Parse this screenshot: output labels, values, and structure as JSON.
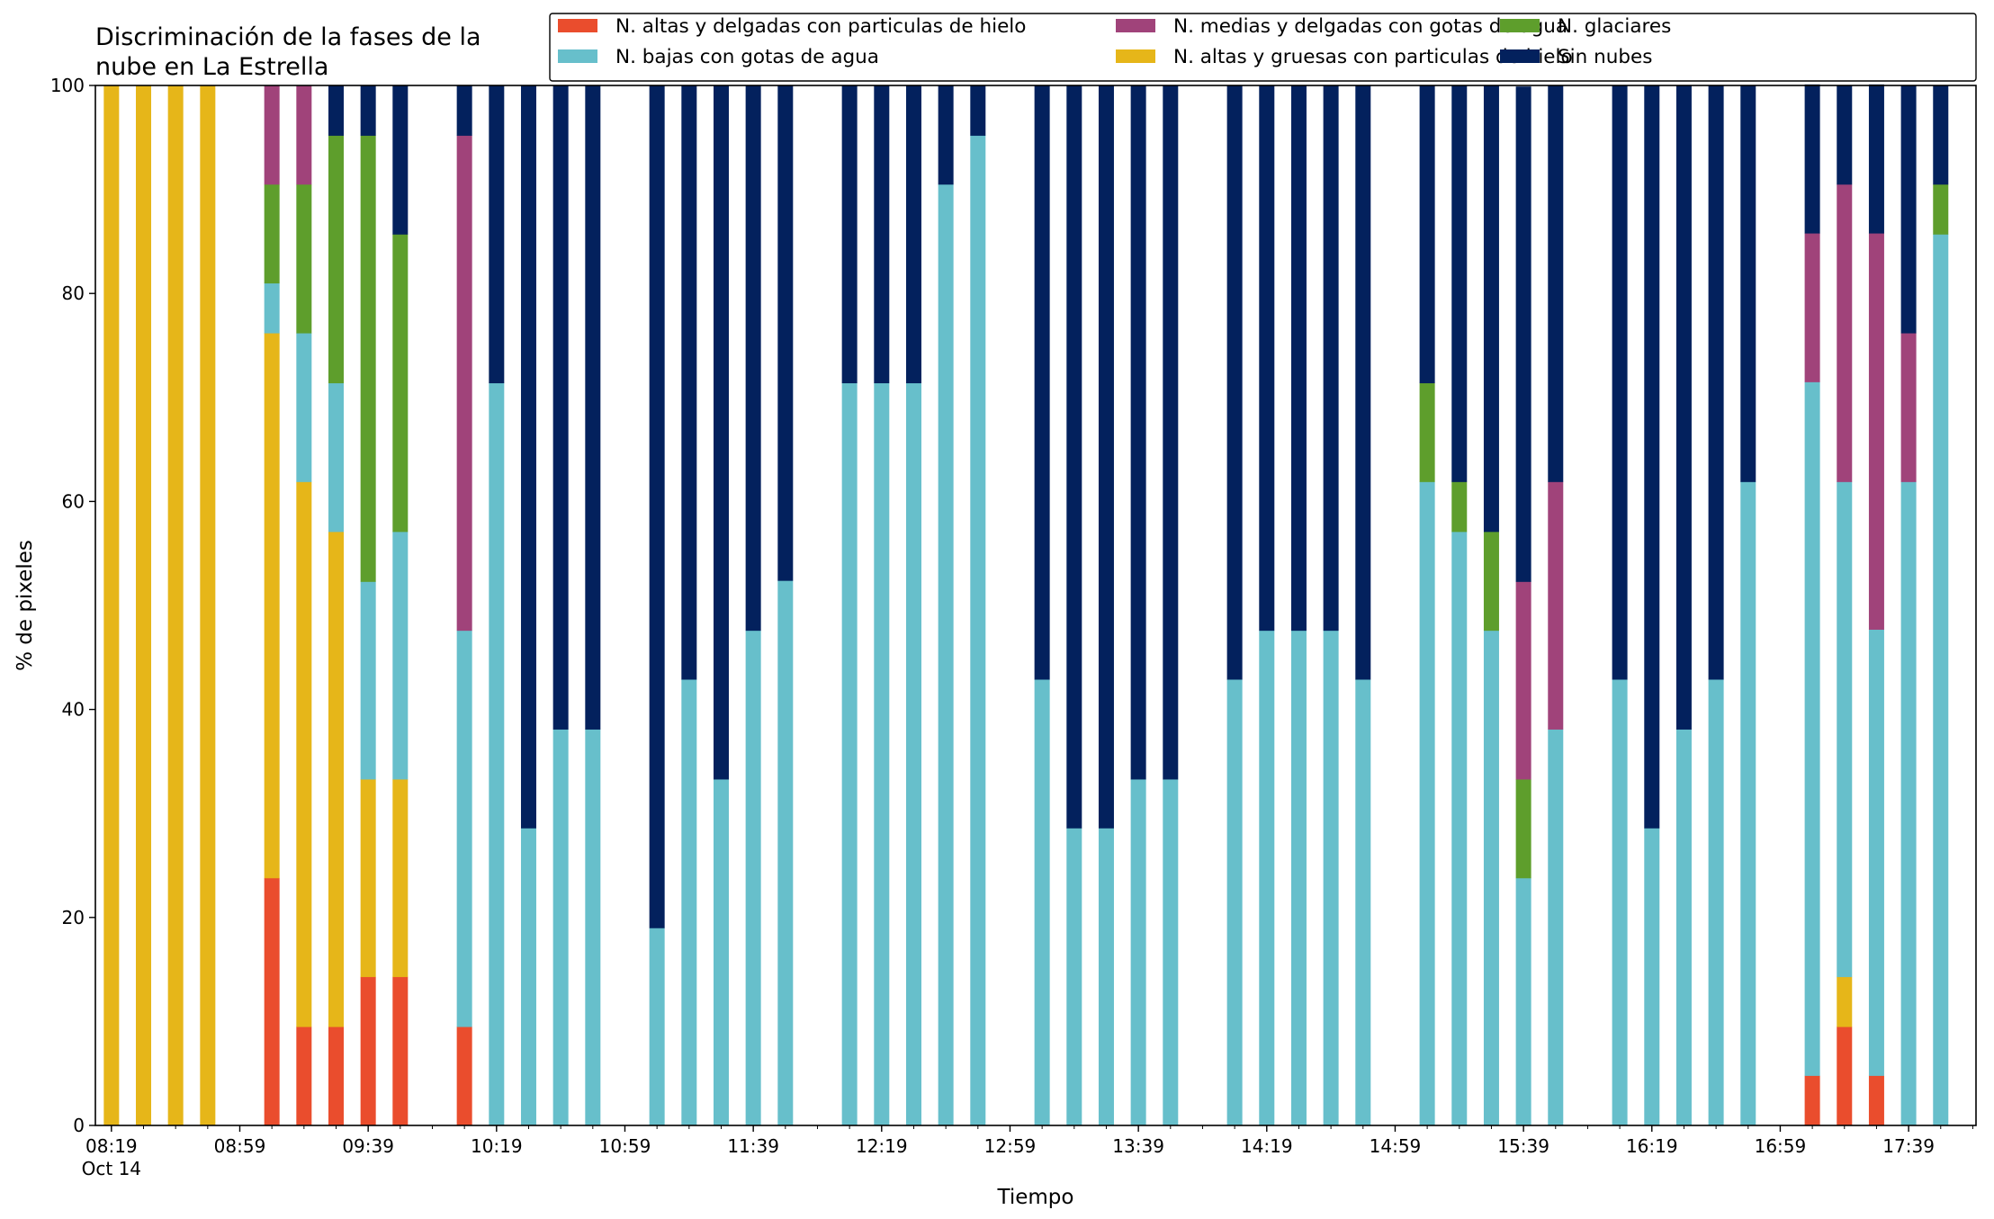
{
  "chart_data": {
    "type": "bar",
    "stacked": true,
    "title_lines": [
      "Discriminación de la fases de la",
      "nube en La Estrella"
    ],
    "xlabel": "Tiempo",
    "ylabel": "% de pixeles",
    "ylim": [
      0,
      100
    ],
    "yticks": [
      0,
      20,
      40,
      60,
      80,
      100
    ],
    "grid": false,
    "legend_position": "top-right",
    "x_time_range": [
      "08:14",
      "18:00"
    ],
    "x_ticks": [
      {
        "time": "08:19",
        "label": "08:19",
        "sublabel": "Oct 14"
      },
      {
        "time": "08:59",
        "label": "08:59"
      },
      {
        "time": "09:39",
        "label": "09:39"
      },
      {
        "time": "10:19",
        "label": "10:19"
      },
      {
        "time": "10:59",
        "label": "10:59"
      },
      {
        "time": "11:39",
        "label": "11:39"
      },
      {
        "time": "12:19",
        "label": "12:19"
      },
      {
        "time": "12:59",
        "label": "12:59"
      },
      {
        "time": "13:39",
        "label": "13:39"
      },
      {
        "time": "14:19",
        "label": "14:19"
      },
      {
        "time": "14:59",
        "label": "14:59"
      },
      {
        "time": "15:39",
        "label": "15:39"
      },
      {
        "time": "16:19",
        "label": "16:19"
      },
      {
        "time": "16:59",
        "label": "16:59"
      },
      {
        "time": "17:39",
        "label": "17:39"
      }
    ],
    "series": [
      {
        "name": "N. altas y delgadas con particulas de hielo",
        "color": "#ea4d2d"
      },
      {
        "name": "N. altas y gruesas con particulas de hielo",
        "color": "#e6b619"
      },
      {
        "name": "N. bajas con gotas de agua",
        "color": "#67bfcb"
      },
      {
        "name": "N. glaciares",
        "color": "#5e9e2c"
      },
      {
        "name": "N. medias y delgadas con gotas de agua",
        "color": "#a0437a"
      },
      {
        "name": "Sin nubes",
        "color": "#03215d"
      }
    ],
    "legend_order": [
      0,
      2,
      4,
      1,
      3,
      5
    ],
    "bars": [
      {
        "time": "08:19",
        "values": [
          0,
          100,
          0,
          0,
          0,
          0
        ]
      },
      {
        "time": "08:29",
        "values": [
          0,
          100,
          0,
          0,
          0,
          0
        ]
      },
      {
        "time": "08:39",
        "values": [
          0,
          100,
          0,
          0,
          0,
          0
        ]
      },
      {
        "time": "08:49",
        "values": [
          0,
          100,
          0,
          0,
          0,
          0
        ]
      },
      {
        "time": "09:09",
        "values": [
          23.8,
          52.4,
          4.8,
          9.5,
          9.5,
          0
        ]
      },
      {
        "time": "09:19",
        "values": [
          9.5,
          52.4,
          14.3,
          14.3,
          9.5,
          0
        ]
      },
      {
        "time": "09:29",
        "values": [
          9.5,
          47.6,
          14.3,
          23.8,
          0,
          4.8
        ]
      },
      {
        "time": "09:39",
        "values": [
          14.3,
          19.0,
          19.0,
          42.9,
          0,
          4.8
        ]
      },
      {
        "time": "09:49",
        "values": [
          14.3,
          19.0,
          23.8,
          28.6,
          0,
          14.3
        ]
      },
      {
        "time": "10:09",
        "values": [
          9.5,
          0,
          38.1,
          0,
          47.6,
          4.8
        ]
      },
      {
        "time": "10:19",
        "values": [
          0,
          0,
          71.4,
          0,
          0,
          28.6
        ]
      },
      {
        "time": "10:29",
        "values": [
          0,
          0,
          28.6,
          0,
          0,
          71.4
        ]
      },
      {
        "time": "10:39",
        "values": [
          0,
          0,
          38.1,
          0,
          0,
          61.9
        ]
      },
      {
        "time": "10:49",
        "values": [
          0,
          0,
          38.1,
          0,
          0,
          61.9
        ]
      },
      {
        "time": "11:09",
        "values": [
          0,
          0,
          19.0,
          0,
          0,
          81.0
        ]
      },
      {
        "time": "11:19",
        "values": [
          0,
          0,
          42.9,
          0,
          0,
          57.1
        ]
      },
      {
        "time": "11:29",
        "values": [
          0,
          0,
          33.3,
          0,
          0,
          66.7
        ]
      },
      {
        "time": "11:39",
        "values": [
          0,
          0,
          47.6,
          0,
          0,
          52.4
        ]
      },
      {
        "time": "11:49",
        "values": [
          0,
          0,
          52.4,
          0,
          0,
          47.6
        ]
      },
      {
        "time": "12:09",
        "values": [
          0,
          0,
          71.4,
          0,
          0,
          28.6
        ]
      },
      {
        "time": "12:19",
        "values": [
          0,
          0,
          71.4,
          0,
          0,
          28.6
        ]
      },
      {
        "time": "12:29",
        "values": [
          0,
          0,
          71.4,
          0,
          0,
          28.6
        ]
      },
      {
        "time": "12:39",
        "values": [
          0,
          0,
          90.5,
          0,
          0,
          9.5
        ]
      },
      {
        "time": "12:49",
        "values": [
          0,
          0,
          95.2,
          0,
          0,
          4.8
        ]
      },
      {
        "time": "13:09",
        "values": [
          0,
          0,
          42.9,
          0,
          0,
          57.1
        ]
      },
      {
        "time": "13:19",
        "values": [
          0,
          0,
          28.6,
          0,
          0,
          71.4
        ]
      },
      {
        "time": "13:29",
        "values": [
          0,
          0,
          28.6,
          0,
          0,
          71.4
        ]
      },
      {
        "time": "13:39",
        "values": [
          0,
          0,
          33.3,
          0,
          0,
          66.7
        ]
      },
      {
        "time": "13:49",
        "values": [
          0,
          0,
          33.3,
          0,
          0,
          66.7
        ]
      },
      {
        "time": "14:09",
        "values": [
          0,
          0,
          42.9,
          0,
          0,
          57.1
        ]
      },
      {
        "time": "14:19",
        "values": [
          0,
          0,
          47.6,
          0,
          0,
          52.4
        ]
      },
      {
        "time": "14:29",
        "values": [
          0,
          0,
          47.6,
          0,
          0,
          52.4
        ]
      },
      {
        "time": "14:39",
        "values": [
          0,
          0,
          47.6,
          0,
          0,
          52.4
        ]
      },
      {
        "time": "14:49",
        "values": [
          0,
          0,
          42.9,
          0,
          0,
          57.1
        ]
      },
      {
        "time": "15:09",
        "values": [
          0,
          0,
          61.9,
          9.5,
          0,
          28.6
        ]
      },
      {
        "time": "15:19",
        "values": [
          0,
          0,
          57.1,
          4.8,
          0,
          38.1
        ]
      },
      {
        "time": "15:29",
        "values": [
          0,
          0,
          47.6,
          9.5,
          0,
          42.9
        ]
      },
      {
        "time": "15:39",
        "values": [
          0,
          0,
          23.8,
          9.5,
          19.0,
          47.6
        ]
      },
      {
        "time": "15:49",
        "values": [
          0,
          0,
          38.1,
          0,
          23.8,
          38.1
        ]
      },
      {
        "time": "16:09",
        "values": [
          0,
          0,
          42.9,
          0,
          0,
          57.1
        ]
      },
      {
        "time": "16:19",
        "values": [
          0,
          0,
          28.6,
          0,
          0,
          71.4
        ]
      },
      {
        "time": "16:29",
        "values": [
          0,
          0,
          38.1,
          0,
          0,
          61.9
        ]
      },
      {
        "time": "16:39",
        "values": [
          0,
          0,
          42.9,
          0,
          0,
          57.1
        ]
      },
      {
        "time": "16:49",
        "values": [
          0,
          0,
          61.9,
          0,
          0,
          38.1
        ]
      },
      {
        "time": "17:09",
        "values": [
          4.8,
          0,
          66.7,
          0,
          14.3,
          14.3
        ]
      },
      {
        "time": "17:19",
        "values": [
          9.5,
          4.8,
          47.6,
          0,
          28.6,
          9.5
        ]
      },
      {
        "time": "17:29",
        "values": [
          4.8,
          0,
          42.9,
          0,
          38.1,
          14.3
        ]
      },
      {
        "time": "17:39",
        "values": [
          0,
          0,
          61.9,
          0,
          14.3,
          23.8
        ]
      },
      {
        "time": "17:49",
        "values": [
          0,
          0,
          85.7,
          4.8,
          0,
          9.5
        ]
      }
    ]
  }
}
